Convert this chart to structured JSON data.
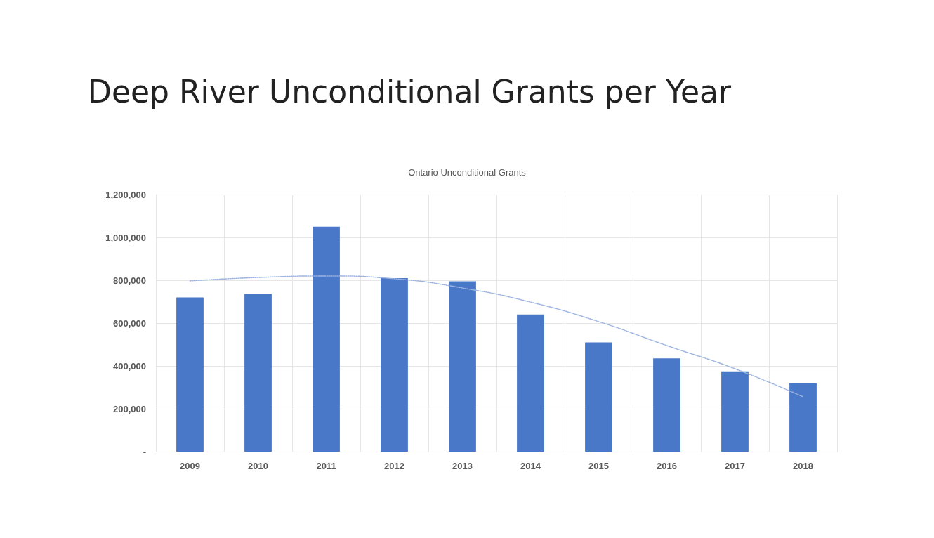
{
  "chart_data": {
    "type": "bar",
    "title": "Deep River Unconditional Grants per Year",
    "subtitle": "Ontario Unconditional Grants",
    "categories": [
      "2009",
      "2010",
      "2011",
      "2012",
      "2013",
      "2014",
      "2015",
      "2016",
      "2017",
      "2018"
    ],
    "series": [
      {
        "color": "#4a78c8",
        "values": [
          720000,
          735000,
          1050000,
          810000,
          795000,
          640000,
          510000,
          435000,
          375000,
          320000
        ]
      },
      {
        "type": "line",
        "color": "#9db4e0",
        "line_style": "dotted",
        "marker": "none",
        "values": [
          797000,
          813000,
          820000,
          807000,
          764000,
          698000,
          607000,
          495000,
          387000,
          256000
        ]
      }
    ],
    "ylim": [
      0,
      1200000
    ],
    "yticks": [
      {
        "value": 0,
        "label": "-"
      },
      {
        "value": 200000,
        "label": "200,000"
      },
      {
        "value": 400000,
        "label": "400,000"
      },
      {
        "value": 600000,
        "label": "600,000"
      },
      {
        "value": 800000,
        "label": "800,000"
      },
      {
        "value": 1000000,
        "label": "1,000,000"
      },
      {
        "value": 1200000,
        "label": "1,200,000"
      }
    ],
    "grid": true
  }
}
